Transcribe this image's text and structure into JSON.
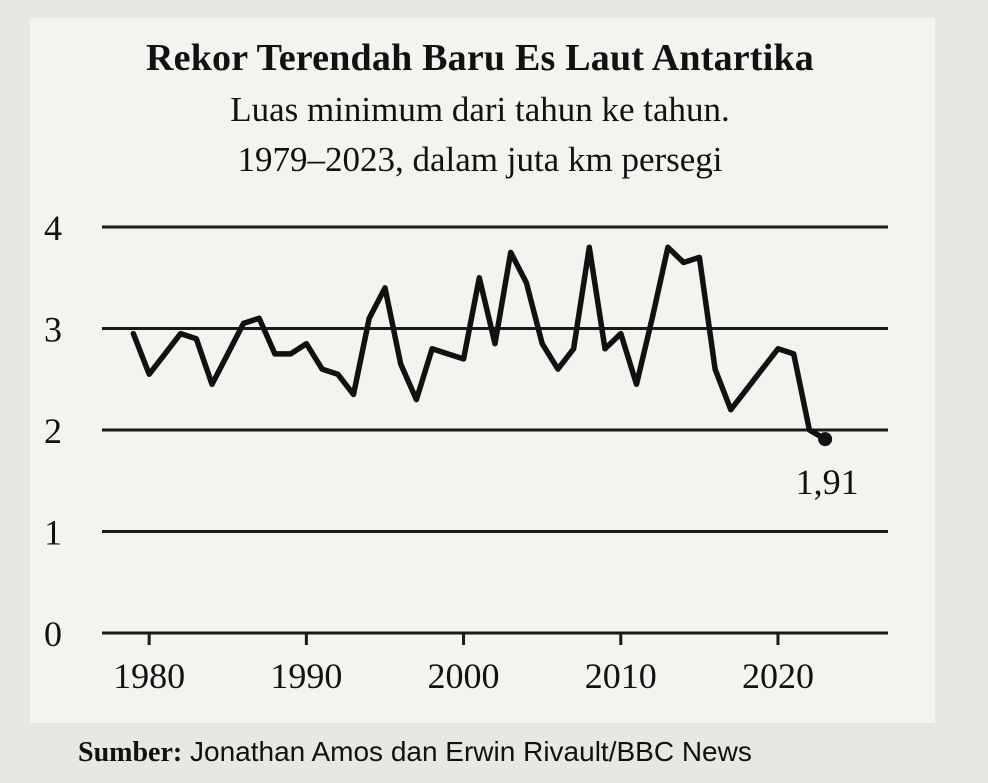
{
  "chart_data": {
    "type": "line",
    "title": "Rekor Terendah Baru Es Laut Antartika",
    "subtitle_line1": "Luas minimum dari tahun ke tahun.",
    "subtitle_line2": "1979–2023, dalam juta km persegi",
    "xlabel": "",
    "ylabel": "",
    "xlim": [
      1977,
      2027
    ],
    "ylim": [
      0,
      4
    ],
    "x_ticks": [
      1980,
      1990,
      2000,
      2010,
      2020
    ],
    "y_ticks": [
      0,
      1,
      2,
      3,
      4
    ],
    "grid": true,
    "annotation": {
      "text": "1,91",
      "x": 2023,
      "y": 1.91
    },
    "series": [
      {
        "x": [
          1979,
          1980,
          1981,
          1982,
          1983,
          1984,
          1985,
          1986,
          1987,
          1988,
          1989,
          1990,
          1991,
          1992,
          1993,
          1994,
          1995,
          1996,
          1997,
          1998,
          1999,
          2000,
          2001,
          2002,
          2003,
          2004,
          2005,
          2006,
          2007,
          2008,
          2009,
          2010,
          2011,
          2012,
          2013,
          2014,
          2015,
          2016,
          2017,
          2018,
          2019,
          2020,
          2021,
          2022,
          2023
        ],
        "values": [
          2.95,
          2.55,
          2.75,
          2.95,
          2.9,
          2.45,
          2.75,
          3.05,
          3.1,
          2.75,
          2.75,
          2.85,
          2.6,
          2.55,
          2.35,
          3.1,
          3.4,
          2.65,
          2.3,
          2.8,
          2.75,
          2.7,
          3.5,
          2.85,
          3.75,
          3.45,
          2.85,
          2.6,
          2.8,
          3.8,
          2.8,
          2.95,
          2.45,
          3.1,
          3.8,
          3.65,
          3.7,
          2.6,
          2.2,
          2.4,
          2.6,
          2.8,
          2.75,
          2.0,
          1.91
        ]
      }
    ]
  },
  "source": {
    "label": "Sumber:",
    "text": "Jonathan  Amos dan Erwin Rivault/BBC News"
  }
}
